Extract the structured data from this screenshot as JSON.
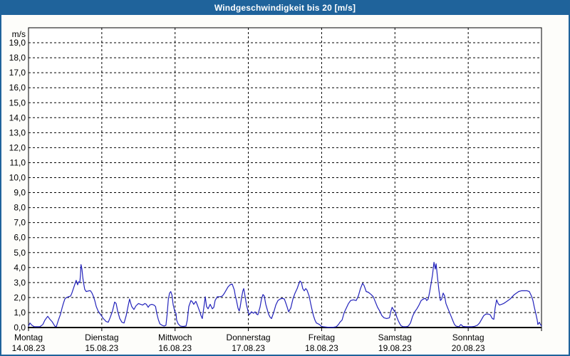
{
  "window": {
    "title": "Windgeschwindigkeit bis 20 [m/s]"
  },
  "colors": {
    "title_bar": "#1f639b",
    "window_border": "#1f639b",
    "series_line": "#2323bb",
    "grid": "#000000",
    "axis": "#000000",
    "text": "#000000",
    "plot_background": "#ffffff",
    "page_background": "#fdfdfa"
  },
  "chart_data": {
    "type": "line",
    "title": "Windgeschwindigkeit bis 20 [m/s]",
    "ylabel": "m/s",
    "xlabel": "",
    "ylim": [
      0,
      20
    ],
    "ytick_step": 1.0,
    "ytick_labels": [
      "0,0",
      "1,0",
      "2,0",
      "3,0",
      "4,0",
      "5,0",
      "6,0",
      "7,0",
      "8,0",
      "9,0",
      "10,0",
      "11,0",
      "12,0",
      "13,0",
      "14,0",
      "15,0",
      "16,0",
      "17,0",
      "18,0",
      "19,0"
    ],
    "grid": "dashed",
    "legend_position": "none",
    "x_axis": {
      "hours_total": 168,
      "days": [
        {
          "weekday": "Montag",
          "date": "14.08.23"
        },
        {
          "weekday": "Dienstag",
          "date": "15.08.23"
        },
        {
          "weekday": "Mittwoch",
          "date": "16.08.23"
        },
        {
          "weekday": "Donnerstag",
          "date": "17.08.23"
        },
        {
          "weekday": "Freitag",
          "date": "18.08.23"
        },
        {
          "weekday": "Samstag",
          "date": "19.08.23"
        },
        {
          "weekday": "Sonntag",
          "date": "20.08.23"
        }
      ]
    },
    "series": [
      {
        "name": "Windgeschwindigkeit",
        "unit": "m/s",
        "color": "#2323bb",
        "points_hours_value": [
          [
            0,
            0.1
          ],
          [
            0.5,
            0.3
          ],
          [
            1.1,
            0.15
          ],
          [
            1.9,
            0.05
          ],
          [
            3.7,
            0.05
          ],
          [
            4.7,
            0.2
          ],
          [
            5.4,
            0.5
          ],
          [
            6.3,
            0.75
          ],
          [
            7,
            0.55
          ],
          [
            7.7,
            0.4
          ],
          [
            8.6,
            0.1
          ],
          [
            9.1,
            0.05
          ],
          [
            9.8,
            0.5
          ],
          [
            10.5,
            0.9
          ],
          [
            11,
            1.3
          ],
          [
            11.4,
            1.6
          ],
          [
            11.9,
            1.9
          ],
          [
            12.4,
            2.0
          ],
          [
            13.1,
            2.05
          ],
          [
            13.8,
            2.1
          ],
          [
            14.2,
            2.3
          ],
          [
            14.7,
            2.6
          ],
          [
            15.2,
            2.9
          ],
          [
            15.6,
            3.15
          ],
          [
            16.1,
            2.85
          ],
          [
            16.4,
            3.05
          ],
          [
            16.8,
            3.0
          ],
          [
            17.0,
            3.5
          ],
          [
            17.2,
            4.2
          ],
          [
            17.5,
            3.9
          ],
          [
            17.8,
            3.3
          ],
          [
            18.1,
            2.9
          ],
          [
            18.4,
            2.55
          ],
          [
            18.9,
            2.4
          ],
          [
            19.8,
            2.45
          ],
          [
            20.3,
            2.45
          ],
          [
            20.8,
            2.3
          ],
          [
            21.2,
            2.1
          ],
          [
            21.7,
            1.8
          ],
          [
            22.2,
            1.4
          ],
          [
            22.8,
            1.1
          ],
          [
            23.3,
            0.95
          ],
          [
            24,
            0.75
          ],
          [
            24.5,
            0.6
          ],
          [
            25,
            0.5
          ],
          [
            25.4,
            0.4
          ],
          [
            26.1,
            0.35
          ],
          [
            26.8,
            0.7
          ],
          [
            27.5,
            1.1
          ],
          [
            28.2,
            1.7
          ],
          [
            28.7,
            1.6
          ],
          [
            29.2,
            1.1
          ],
          [
            29.9,
            0.6
          ],
          [
            30.6,
            0.35
          ],
          [
            31.3,
            0.3
          ],
          [
            32,
            0.8
          ],
          [
            32.7,
            1.5
          ],
          [
            33.1,
            1.9
          ],
          [
            33.5,
            1.6
          ],
          [
            33.8,
            1.4
          ],
          [
            34.5,
            1.2
          ],
          [
            35.2,
            1.45
          ],
          [
            36,
            1.6
          ],
          [
            36.7,
            1.55
          ],
          [
            37.4,
            1.5
          ],
          [
            38.1,
            1.6
          ],
          [
            38.6,
            1.55
          ],
          [
            39.2,
            1.35
          ],
          [
            39.7,
            1.5
          ],
          [
            40.4,
            1.55
          ],
          [
            41.1,
            1.5
          ],
          [
            41.6,
            1.4
          ],
          [
            42,
            0.95
          ],
          [
            42.5,
            0.55
          ],
          [
            43,
            0.25
          ],
          [
            43.7,
            0.15
          ],
          [
            44.4,
            0.1
          ],
          [
            45,
            0.15
          ],
          [
            45.4,
            0.9
          ],
          [
            45.8,
            1.9
          ],
          [
            46.2,
            2.3
          ],
          [
            46.6,
            2.4
          ],
          [
            47,
            2.15
          ],
          [
            47.4,
            1.5
          ],
          [
            48,
            1.0
          ],
          [
            48.3,
            0.95
          ],
          [
            48.5,
            0.5
          ],
          [
            49,
            0.25
          ],
          [
            49.7,
            0.1
          ],
          [
            50.6,
            0.07
          ],
          [
            51.6,
            0.1
          ],
          [
            52,
            0.5
          ],
          [
            52.5,
            1.4
          ],
          [
            53.2,
            1.8
          ],
          [
            53.7,
            1.7
          ],
          [
            54.1,
            1.55
          ],
          [
            54.8,
            1.75
          ],
          [
            55.3,
            1.5
          ],
          [
            56,
            1.1
          ],
          [
            56.5,
            0.8
          ],
          [
            56.9,
            0.6
          ],
          [
            57.4,
            1.3
          ],
          [
            57.9,
            2.05
          ],
          [
            58.3,
            1.4
          ],
          [
            58.8,
            1.25
          ],
          [
            59.5,
            1.55
          ],
          [
            60.2,
            1.25
          ],
          [
            60.7,
            1.35
          ],
          [
            61.1,
            1.8
          ],
          [
            61.8,
            2.05
          ],
          [
            62.8,
            2.05
          ],
          [
            63.5,
            2.1
          ],
          [
            64.2,
            2.3
          ],
          [
            64.9,
            2.55
          ],
          [
            65.3,
            2.7
          ],
          [
            66,
            2.85
          ],
          [
            66.7,
            2.9
          ],
          [
            67.4,
            2.5
          ],
          [
            67.7,
            2.15
          ],
          [
            68.1,
            1.8
          ],
          [
            68.6,
            1.3
          ],
          [
            69,
            1.1
          ],
          [
            69.3,
            1.35
          ],
          [
            69.8,
            2.0
          ],
          [
            70.2,
            2.45
          ],
          [
            70.5,
            2.6
          ],
          [
            70.9,
            2.1
          ],
          [
            71.4,
            1.5
          ],
          [
            72,
            1.0
          ],
          [
            72.3,
            0.85
          ],
          [
            73,
            1.05
          ],
          [
            73.7,
            0.95
          ],
          [
            74.2,
            1.05
          ],
          [
            74.7,
            0.9
          ],
          [
            75.1,
            0.85
          ],
          [
            75.8,
            1.35
          ],
          [
            76.3,
            1.9
          ],
          [
            76.8,
            2.2
          ],
          [
            77.2,
            2.1
          ],
          [
            77.7,
            1.55
          ],
          [
            78.2,
            1.2
          ],
          [
            78.6,
            0.9
          ],
          [
            79.1,
            0.7
          ],
          [
            79.6,
            0.6
          ],
          [
            80.3,
            1.0
          ],
          [
            81,
            1.5
          ],
          [
            81.7,
            1.8
          ],
          [
            82.4,
            1.9
          ],
          [
            83.1,
            1.95
          ],
          [
            83.8,
            1.9
          ],
          [
            84.5,
            1.5
          ],
          [
            85.2,
            1.05
          ],
          [
            85.9,
            1.3
          ],
          [
            86.6,
            1.9
          ],
          [
            87.3,
            2.3
          ],
          [
            88,
            2.6
          ],
          [
            88.4,
            2.85
          ],
          [
            88.9,
            3.1
          ],
          [
            89.4,
            3.0
          ],
          [
            89.8,
            2.6
          ],
          [
            90.3,
            2.45
          ],
          [
            90.8,
            2.6
          ],
          [
            91.2,
            2.5
          ],
          [
            91.9,
            2.1
          ],
          [
            92.4,
            1.6
          ],
          [
            92.9,
            1.15
          ],
          [
            93.3,
            0.8
          ],
          [
            93.8,
            0.5
          ],
          [
            94.3,
            0.3
          ],
          [
            94.8,
            0.25
          ],
          [
            95.3,
            0.2
          ],
          [
            95.8,
            0.1
          ],
          [
            96.4,
            0.05
          ],
          [
            98,
            0.02
          ],
          [
            99.9,
            0.02
          ],
          [
            100.8,
            0.05
          ],
          [
            101.5,
            0.2
          ],
          [
            102,
            0.35
          ],
          [
            102.7,
            0.5
          ],
          [
            103.4,
            1.0
          ],
          [
            104.1,
            1.3
          ],
          [
            104.8,
            1.6
          ],
          [
            105.5,
            1.8
          ],
          [
            106.4,
            1.85
          ],
          [
            107.3,
            1.8
          ],
          [
            108,
            2.1
          ],
          [
            108.7,
            2.6
          ],
          [
            109.4,
            2.95
          ],
          [
            109.9,
            2.8
          ],
          [
            110.6,
            2.4
          ],
          [
            111.3,
            2.35
          ],
          [
            112.2,
            2.2
          ],
          [
            112.9,
            2.05
          ],
          [
            113.6,
            1.7
          ],
          [
            114.3,
            1.35
          ],
          [
            115,
            1.1
          ],
          [
            115.7,
            0.8
          ],
          [
            116.4,
            0.65
          ],
          [
            117.3,
            0.6
          ],
          [
            118.2,
            0.65
          ],
          [
            118.7,
            1.1
          ],
          [
            119.1,
            1.35
          ],
          [
            119.6,
            1.15
          ],
          [
            120.2,
            1.0
          ],
          [
            120.6,
            0.7
          ],
          [
            121.1,
            0.45
          ],
          [
            121.6,
            0.25
          ],
          [
            122,
            0.12
          ],
          [
            122.7,
            0.05
          ],
          [
            123.7,
            0.05
          ],
          [
            124.4,
            0.1
          ],
          [
            125.1,
            0.3
          ],
          [
            125.8,
            0.75
          ],
          [
            126.5,
            1.05
          ],
          [
            127.2,
            1.25
          ],
          [
            127.9,
            1.5
          ],
          [
            128.6,
            1.8
          ],
          [
            129.3,
            1.9
          ],
          [
            130,
            1.95
          ],
          [
            130.4,
            1.8
          ],
          [
            130.9,
            1.9
          ],
          [
            131.4,
            2.4
          ],
          [
            131.8,
            2.9
          ],
          [
            132.3,
            3.5
          ],
          [
            132.8,
            4.35
          ],
          [
            133.2,
            3.9
          ],
          [
            133.5,
            4.25
          ],
          [
            133.9,
            3.4
          ],
          [
            134.4,
            2.5
          ],
          [
            134.9,
            1.8
          ],
          [
            135.3,
            1.9
          ],
          [
            135.8,
            2.3
          ],
          [
            136.3,
            2.1
          ],
          [
            136.7,
            1.6
          ],
          [
            137.2,
            1.35
          ],
          [
            137.7,
            1.1
          ],
          [
            138.4,
            0.75
          ],
          [
            139.1,
            0.4
          ],
          [
            139.5,
            0.2
          ],
          [
            140,
            0.1
          ],
          [
            140.9,
            0.05
          ],
          [
            141.6,
            0.2
          ],
          [
            142.3,
            0.07
          ],
          [
            143.3,
            0.05
          ],
          [
            144.2,
            0.05
          ],
          [
            145.2,
            0.05
          ],
          [
            146.1,
            0.08
          ],
          [
            147,
            0.15
          ],
          [
            147.7,
            0.3
          ],
          [
            148.4,
            0.55
          ],
          [
            149.1,
            0.8
          ],
          [
            149.8,
            0.9
          ],
          [
            150.5,
            0.9
          ],
          [
            151.2,
            0.85
          ],
          [
            151.9,
            0.6
          ],
          [
            152.4,
            0.55
          ],
          [
            152.8,
            1.3
          ],
          [
            153.3,
            1.85
          ],
          [
            153.8,
            1.6
          ],
          [
            154.2,
            1.5
          ],
          [
            154.9,
            1.55
          ],
          [
            155.6,
            1.6
          ],
          [
            156.3,
            1.7
          ],
          [
            157,
            1.8
          ],
          [
            157.7,
            1.9
          ],
          [
            158.4,
            2.05
          ],
          [
            159.1,
            2.2
          ],
          [
            159.8,
            2.3
          ],
          [
            160.5,
            2.4
          ],
          [
            161.4,
            2.45
          ],
          [
            162.3,
            2.45
          ],
          [
            163.3,
            2.45
          ],
          [
            164,
            2.4
          ],
          [
            164.7,
            2.1
          ],
          [
            165.2,
            1.8
          ],
          [
            165.6,
            1.4
          ],
          [
            166.1,
            0.95
          ],
          [
            166.6,
            0.5
          ],
          [
            166.8,
            0.2
          ],
          [
            167.3,
            0.35
          ],
          [
            167.5,
            0.25
          ],
          [
            168,
            0.1
          ]
        ]
      }
    ]
  }
}
